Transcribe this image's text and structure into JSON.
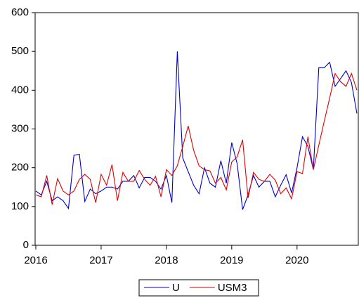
{
  "chart_data": {
    "type": "line",
    "x": [
      2016,
      2016.0833,
      2016.1667,
      2016.25,
      2016.3333,
      2016.4167,
      2016.5,
      2016.5833,
      2016.6667,
      2016.75,
      2016.8333,
      2016.9167,
      2017,
      2017.0833,
      2017.1667,
      2017.25,
      2017.3333,
      2017.4167,
      2017.5,
      2017.5833,
      2017.6667,
      2017.75,
      2017.8333,
      2017.9167,
      2018,
      2018.0833,
      2018.1667,
      2018.25,
      2018.3333,
      2018.4167,
      2018.5,
      2018.5833,
      2018.6667,
      2018.75,
      2018.8333,
      2018.9167,
      2019,
      2019.0833,
      2019.1667,
      2019.25,
      2019.3333,
      2019.4167,
      2019.5,
      2019.5833,
      2019.6667,
      2019.75,
      2019.8333,
      2019.9167,
      2020,
      2020.0833,
      2020.1667,
      2020.25,
      2020.3333,
      2020.4167,
      2020.5,
      2020.5833,
      2020.6667,
      2020.75,
      2020.8333,
      2020.9167
    ],
    "series": [
      {
        "name": "U",
        "color": "#0000cc",
        "values": [
          140,
          130,
          165,
          115,
          125,
          115,
          95,
          232,
          235,
          113,
          145,
          133,
          140,
          150,
          150,
          145,
          165,
          165,
          180,
          148,
          175,
          175,
          165,
          145,
          180,
          110,
          500,
          225,
          190,
          155,
          133,
          200,
          160,
          150,
          218,
          160,
          265,
          210,
          92,
          130,
          180,
          150,
          165,
          165,
          125,
          155,
          182,
          135,
          200,
          280,
          255,
          195,
          458,
          458,
          472,
          410,
          430,
          450,
          420,
          340
        ]
      },
      {
        "name": "USM3",
        "color": "#e00000",
        "values": [
          130,
          125,
          180,
          105,
          172,
          140,
          130,
          140,
          170,
          183,
          170,
          110,
          183,
          155,
          208,
          115,
          188,
          165,
          165,
          193,
          170,
          155,
          178,
          125,
          195,
          180,
          205,
          255,
          308,
          245,
          205,
          195,
          192,
          160,
          175,
          143,
          215,
          228,
          272,
          122,
          188,
          170,
          165,
          183,
          168,
          133,
          148,
          120,
          190,
          185,
          280,
          195,
          258,
          320,
          380,
          443,
          422,
          410,
          443,
          400
        ]
      }
    ],
    "xlim": [
      2016,
      2020.9167
    ],
    "xticks": [
      2016,
      2017,
      2018,
      2019,
      2020
    ],
    "ylim": [
      0,
      600
    ],
    "yticks": [
      0,
      100,
      200,
      300,
      400,
      500,
      600
    ],
    "legend": "bottom"
  }
}
